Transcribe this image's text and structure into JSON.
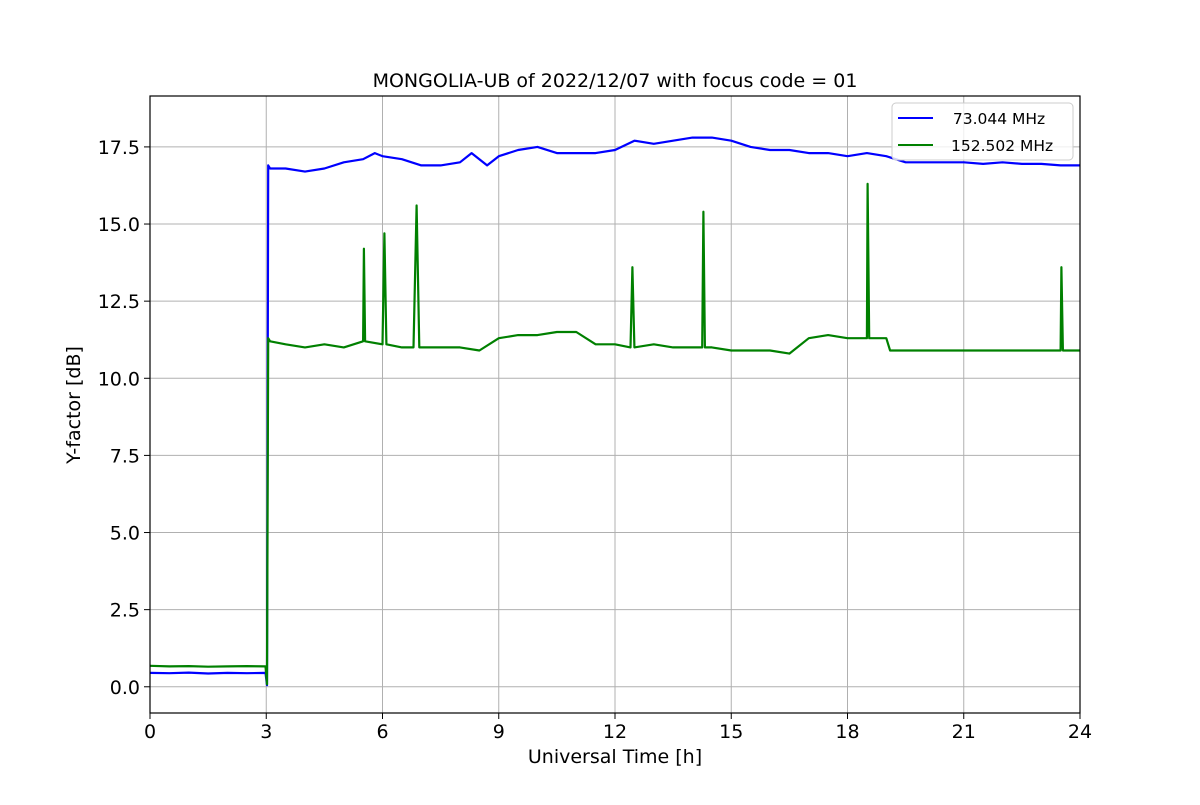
{
  "chart_data": {
    "type": "line",
    "title": "MONGOLIA-UB of 2022/12/07 with focus code = 01",
    "xlabel": "Universal Time [h]",
    "ylabel": "Y-factor [dB]",
    "xlim": [
      0,
      24
    ],
    "ylim": [
      -0.85,
      19.15
    ],
    "xticks": [
      0,
      3,
      6,
      9,
      12,
      15,
      18,
      21,
      24
    ],
    "xtick_labels": [
      "0",
      "3",
      "6",
      "9",
      "12",
      "15",
      "18",
      "21",
      "24"
    ],
    "yticks": [
      0,
      2.5,
      5,
      7.5,
      10,
      12.5,
      15,
      17.5
    ],
    "ytick_labels": [
      "0.0",
      "2.5",
      "5.0",
      "7.5",
      "10.0",
      "12.5",
      "15.0",
      "17.5"
    ],
    "grid": true,
    "legend_position": "top-right",
    "series": [
      {
        "name": "  73.044 MHz",
        "color": "#0000ff",
        "x": [
          0,
          0.5,
          1.0,
          1.5,
          2.0,
          2.5,
          2.98,
          3.02,
          3.05,
          3.1,
          3.5,
          4.0,
          4.5,
          5.0,
          5.5,
          5.8,
          6.0,
          6.5,
          7.0,
          7.5,
          8.0,
          8.3,
          8.7,
          9.0,
          9.5,
          10.0,
          10.5,
          11.0,
          11.5,
          12.0,
          12.5,
          13.0,
          13.5,
          14.0,
          14.5,
          15.0,
          15.5,
          16.0,
          16.5,
          17.0,
          17.5,
          18.0,
          18.5,
          19.0,
          19.5,
          20.0,
          20.5,
          21.0,
          21.5,
          22.0,
          22.5,
          23.0,
          23.5,
          24.0
        ],
        "y": [
          0.45,
          0.44,
          0.46,
          0.43,
          0.45,
          0.44,
          0.45,
          0.05,
          16.9,
          16.8,
          16.8,
          16.7,
          16.8,
          17.0,
          17.1,
          17.3,
          17.2,
          17.1,
          16.9,
          16.9,
          17.0,
          17.3,
          16.9,
          17.2,
          17.4,
          17.5,
          17.3,
          17.3,
          17.3,
          17.4,
          17.7,
          17.6,
          17.7,
          17.8,
          17.8,
          17.7,
          17.5,
          17.4,
          17.4,
          17.3,
          17.3,
          17.2,
          17.3,
          17.2,
          17.0,
          17.0,
          17.0,
          17.0,
          16.95,
          17.0,
          16.95,
          16.95,
          16.9,
          16.9
        ]
      },
      {
        "name": "152.502 MHz",
        "color": "#008000",
        "x": [
          0,
          0.5,
          1.0,
          1.5,
          2.0,
          2.5,
          2.98,
          3.02,
          3.05,
          3.1,
          3.5,
          4.0,
          4.5,
          5.0,
          5.5,
          5.52,
          5.55,
          6.0,
          6.05,
          6.1,
          6.5,
          6.8,
          6.88,
          6.95,
          7.5,
          8.0,
          8.5,
          9.0,
          9.5,
          10.0,
          10.5,
          11.0,
          11.5,
          12.0,
          12.4,
          12.45,
          12.5,
          13.0,
          13.5,
          14.0,
          14.25,
          14.28,
          14.32,
          14.5,
          15.0,
          15.5,
          16.0,
          16.5,
          17.0,
          17.5,
          18.0,
          18.3,
          18.5,
          18.52,
          18.56,
          18.7,
          19.0,
          19.1,
          19.5,
          20.0,
          20.5,
          21.0,
          21.5,
          22.0,
          22.5,
          23.0,
          23.5,
          23.52,
          23.56,
          24.0
        ],
        "y": [
          0.68,
          0.66,
          0.67,
          0.65,
          0.66,
          0.67,
          0.66,
          0.08,
          11.3,
          11.2,
          11.1,
          11.0,
          11.1,
          11.0,
          11.2,
          14.2,
          11.2,
          11.1,
          14.7,
          11.1,
          11.0,
          11.0,
          15.6,
          11.0,
          11.0,
          11.0,
          10.9,
          11.3,
          11.4,
          11.4,
          11.5,
          11.5,
          11.1,
          11.1,
          11.0,
          13.6,
          11.0,
          11.1,
          11.0,
          11.0,
          11.0,
          15.4,
          11.0,
          11.0,
          10.9,
          10.9,
          10.9,
          10.8,
          11.3,
          11.4,
          11.3,
          11.3,
          11.3,
          16.3,
          11.3,
          11.3,
          11.3,
          10.9,
          10.9,
          10.9,
          10.9,
          10.9,
          10.9,
          10.9,
          10.9,
          10.9,
          10.9,
          13.6,
          10.9,
          10.9
        ]
      }
    ]
  }
}
